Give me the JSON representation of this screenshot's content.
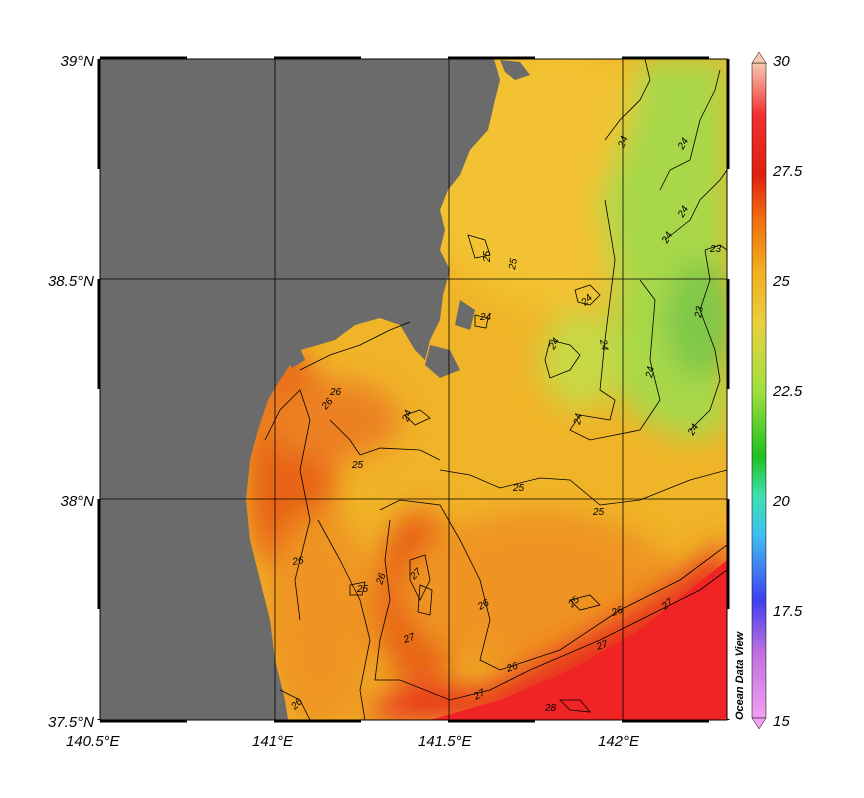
{
  "map": {
    "lon_ticks": [
      "140.5°E",
      "141°E",
      "141.5°E",
      "142°E"
    ],
    "lat_ticks": [
      "39°N",
      "38.5°N",
      "38°N",
      "37.5°N"
    ],
    "land_color": "#6b6b6b"
  },
  "colorbar": {
    "ticks": [
      "30",
      "27.5",
      "25",
      "22.5",
      "20",
      "17.5",
      "15"
    ],
    "min": 15,
    "max": 30,
    "colors": [
      "#f0a0f0",
      "#c070e0",
      "#3030f0",
      "#40c0f0",
      "#40e0b0",
      "#20c020",
      "#a0e040",
      "#e8e040",
      "#f0b020",
      "#f08010",
      "#e03010",
      "#f02020",
      "#f8c0a0"
    ]
  },
  "credit": "Ocean Data View",
  "contour_labels": [
    {
      "text": "24"
    },
    {
      "text": "24"
    },
    {
      "text": "24"
    },
    {
      "text": "24"
    },
    {
      "text": "23"
    },
    {
      "text": "23"
    },
    {
      "text": "25"
    },
    {
      "text": "25"
    },
    {
      "text": "24"
    },
    {
      "text": "24"
    },
    {
      "text": "24"
    },
    {
      "text": "24"
    },
    {
      "text": "24"
    },
    {
      "text": "24"
    },
    {
      "text": "24"
    },
    {
      "text": "24"
    },
    {
      "text": "26"
    },
    {
      "text": "25"
    },
    {
      "text": "25"
    },
    {
      "text": "25"
    },
    {
      "text": "26"
    },
    {
      "text": "27"
    },
    {
      "text": "26"
    },
    {
      "text": "26"
    },
    {
      "text": "27"
    },
    {
      "text": "26"
    },
    {
      "text": "25"
    },
    {
      "text": "26"
    },
    {
      "text": "27"
    },
    {
      "text": "27"
    },
    {
      "text": "27"
    },
    {
      "text": "28"
    },
    {
      "text": "26"
    },
    {
      "text": "25"
    },
    {
      "text": "26"
    }
  ]
}
